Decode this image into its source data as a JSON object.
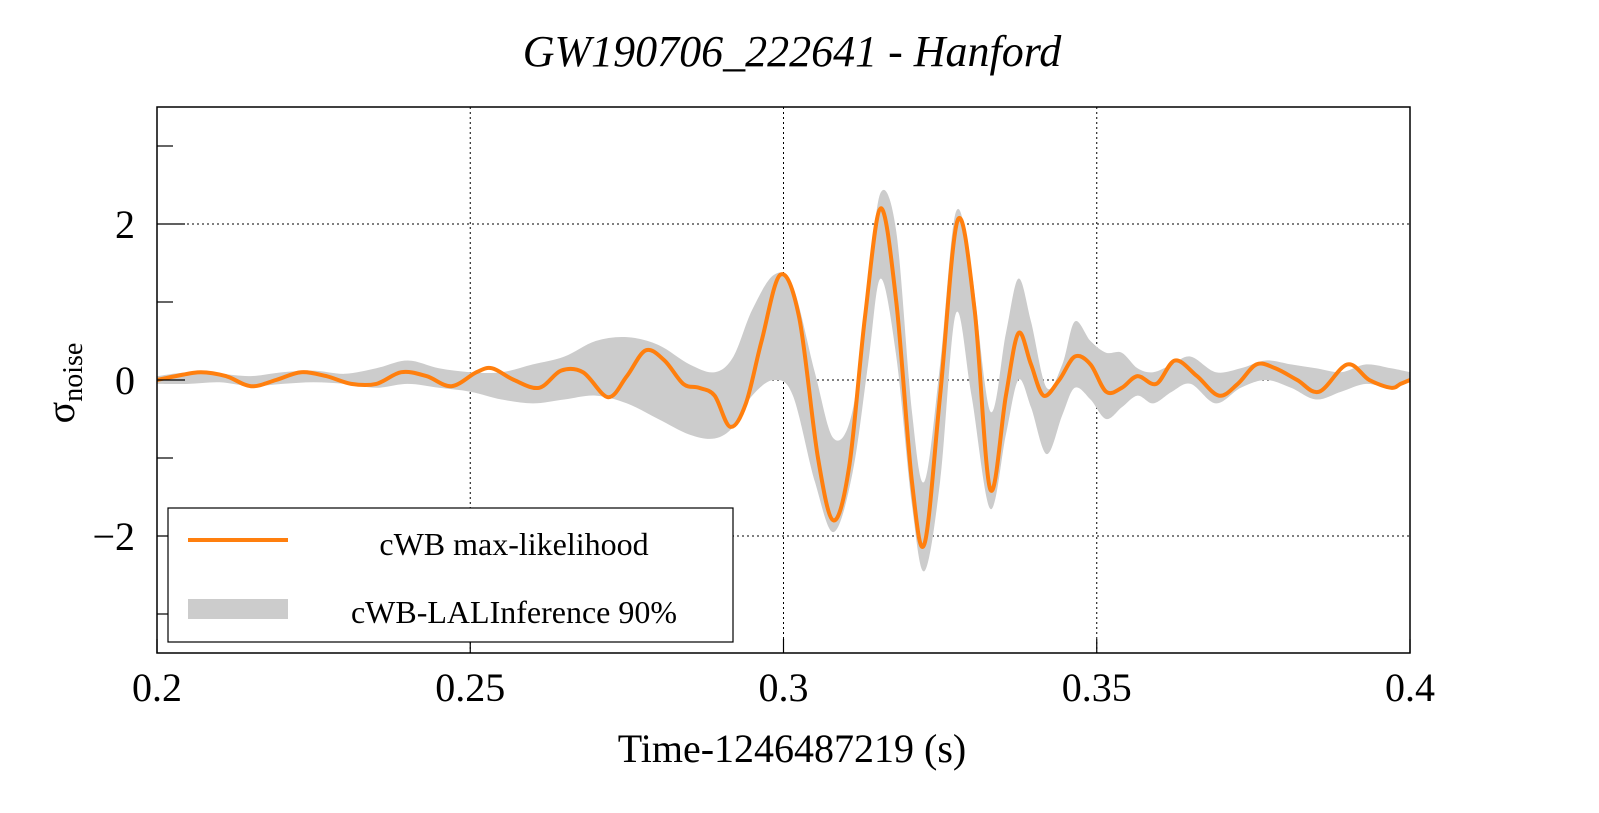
{
  "chart_data": {
    "type": "line",
    "title": "GW190706_222641 - Hanford",
    "xlabel": "Time-1246487219 (s)",
    "ylabel_main": "σ",
    "ylabel_sub": "noise",
    "xlim": [
      0.2,
      0.4
    ],
    "ylim": [
      -3.5,
      3.5
    ],
    "x_ticks": [
      0.2,
      0.25,
      0.3,
      0.35,
      0.4
    ],
    "x_tick_labels": [
      "0.2",
      "0.25",
      "0.3",
      "0.35",
      "0.4"
    ],
    "y_ticks": [
      -2,
      0,
      2
    ],
    "y_tick_labels": [
      "−2",
      "0",
      "2"
    ],
    "y_minor_ticks": [
      -3,
      -1,
      1,
      3
    ],
    "grid": true,
    "legend_position": "bottom-left",
    "colors": {
      "line": "#ff7f0e",
      "band": "#cccccc"
    },
    "series": [
      {
        "name": "cWB max-likelihood",
        "style": "line",
        "x": [
          0.2,
          0.203,
          0.207,
          0.211,
          0.215,
          0.219,
          0.223,
          0.227,
          0.231,
          0.235,
          0.239,
          0.243,
          0.247,
          0.251,
          0.2535,
          0.257,
          0.261,
          0.2645,
          0.268,
          0.272,
          0.275,
          0.278,
          0.281,
          0.284,
          0.2865,
          0.289,
          0.2915,
          0.294,
          0.2965,
          0.2995,
          0.3025,
          0.3055,
          0.308,
          0.3105,
          0.313,
          0.3155,
          0.318,
          0.3205,
          0.3225,
          0.325,
          0.3278,
          0.3305,
          0.333,
          0.3355,
          0.3375,
          0.3395,
          0.3415,
          0.344,
          0.3465,
          0.349,
          0.3515,
          0.354,
          0.3565,
          0.3595,
          0.3625,
          0.366,
          0.3695,
          0.3725,
          0.3755,
          0.3785,
          0.382,
          0.3855,
          0.39,
          0.3935,
          0.397,
          0.3985,
          0.4
        ],
        "y": [
          0.0,
          0.05,
          0.1,
          0.05,
          -0.08,
          0.0,
          0.1,
          0.05,
          -0.05,
          -0.05,
          0.1,
          0.05,
          -0.08,
          0.1,
          0.15,
          0.0,
          -0.1,
          0.12,
          0.1,
          -0.22,
          0.05,
          0.38,
          0.25,
          -0.05,
          -0.1,
          -0.2,
          -0.6,
          -0.3,
          0.5,
          1.35,
          0.8,
          -1.0,
          -1.8,
          -1.1,
          0.8,
          2.2,
          1.0,
          -1.3,
          -2.1,
          -0.2,
          2.05,
          0.9,
          -1.4,
          -0.2,
          0.6,
          0.2,
          -0.2,
          0.0,
          0.3,
          0.2,
          -0.15,
          -0.1,
          0.05,
          -0.05,
          0.25,
          0.05,
          -0.2,
          -0.05,
          0.2,
          0.15,
          0.0,
          -0.15,
          0.2,
          0.0,
          -0.1,
          -0.05,
          0.0
        ]
      },
      {
        "name": "cWB-LALInference 90%",
        "style": "band",
        "x": [
          0.2,
          0.205,
          0.21,
          0.215,
          0.22,
          0.225,
          0.23,
          0.235,
          0.24,
          0.245,
          0.25,
          0.255,
          0.26,
          0.265,
          0.27,
          0.275,
          0.28,
          0.285,
          0.289,
          0.292,
          0.295,
          0.2985,
          0.3015,
          0.305,
          0.308,
          0.311,
          0.3135,
          0.3155,
          0.318,
          0.3205,
          0.3225,
          0.325,
          0.3275,
          0.33,
          0.333,
          0.3355,
          0.3375,
          0.3395,
          0.342,
          0.3445,
          0.3465,
          0.349,
          0.3515,
          0.354,
          0.3565,
          0.359,
          0.362,
          0.365,
          0.369,
          0.373,
          0.377,
          0.381,
          0.385,
          0.389,
          0.393,
          0.397,
          0.4
        ],
        "upper": [
          0.05,
          0.1,
          0.08,
          0.05,
          0.1,
          0.12,
          0.08,
          0.15,
          0.25,
          0.15,
          0.1,
          0.1,
          0.2,
          0.3,
          0.5,
          0.55,
          0.45,
          0.2,
          0.1,
          0.3,
          0.9,
          1.35,
          1.2,
          0.1,
          -0.75,
          -0.4,
          1.2,
          2.4,
          1.9,
          -0.4,
          -1.3,
          0.2,
          2.15,
          1.4,
          -0.4,
          0.6,
          1.3,
          0.75,
          -0.1,
          0.2,
          0.75,
          0.5,
          0.35,
          0.35,
          0.15,
          0.1,
          0.2,
          0.3,
          0.1,
          0.15,
          0.25,
          0.2,
          0.15,
          0.1,
          0.2,
          0.15,
          0.1
        ],
        "lower": [
          -0.05,
          -0.05,
          -0.03,
          -0.08,
          -0.05,
          -0.03,
          -0.05,
          -0.1,
          -0.05,
          -0.1,
          -0.15,
          -0.25,
          -0.3,
          -0.25,
          -0.2,
          -0.3,
          -0.5,
          -0.7,
          -0.75,
          -0.6,
          -0.2,
          0.0,
          -0.2,
          -1.3,
          -1.95,
          -1.2,
          0.2,
          1.3,
          0.3,
          -1.6,
          -2.45,
          -1.3,
          0.85,
          -0.2,
          -1.65,
          -0.7,
          0.0,
          -0.35,
          -0.95,
          -0.45,
          -0.1,
          -0.25,
          -0.5,
          -0.35,
          -0.2,
          -0.3,
          -0.15,
          -0.05,
          -0.3,
          -0.1,
          0.0,
          -0.1,
          -0.25,
          -0.15,
          -0.05,
          -0.1,
          0.0
        ]
      }
    ]
  }
}
